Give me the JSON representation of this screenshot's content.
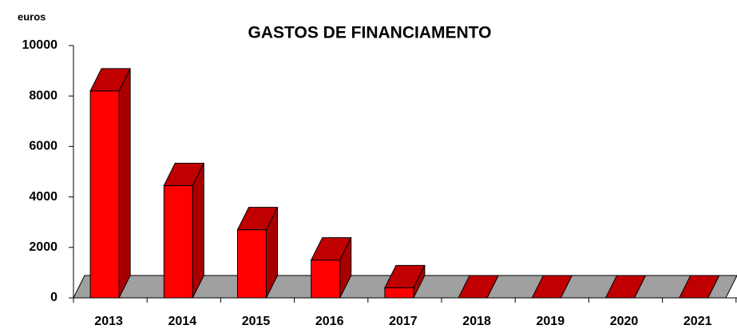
{
  "chart_data": {
    "type": "bar3d",
    "title": "GASTOS DE FINANCIAMENTO",
    "y_label": "euros",
    "categories": [
      "2013",
      "2014",
      "2015",
      "2016",
      "2017",
      "2018",
      "2019",
      "2020",
      "2021"
    ],
    "values": [
      8200,
      4450,
      2700,
      1500,
      400,
      0,
      0,
      0,
      0
    ],
    "color": "#ff0000",
    "ylim": [
      0,
      10000
    ],
    "yticks": [
      0,
      2000,
      4000,
      6000,
      8000,
      10000
    ],
    "grid": false
  }
}
